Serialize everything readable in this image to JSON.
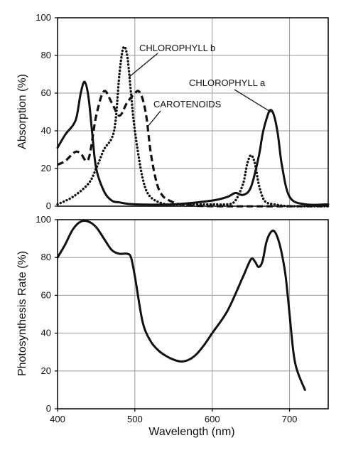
{
  "chart_data": [
    {
      "type": "line",
      "title": "",
      "xlabel": "",
      "ylabel": "Absorption (%)",
      "xlim": [
        400,
        750
      ],
      "ylim": [
        0,
        100
      ],
      "x_ticks": [
        400,
        500,
        600,
        700
      ],
      "y_ticks": [
        0,
        20,
        40,
        60,
        80,
        100
      ],
      "grid": true,
      "series": [
        {
          "name": "CHLOROPHYLL a",
          "style": "solid",
          "x": [
            400,
            410,
            420,
            425,
            430,
            435,
            440,
            445,
            450,
            460,
            470,
            480,
            500,
            550,
            600,
            620,
            630,
            640,
            650,
            660,
            665,
            670,
            675,
            680,
            685,
            690,
            700,
            720,
            750
          ],
          "y": [
            31,
            38,
            43,
            48,
            60,
            66,
            58,
            38,
            20,
            8,
            3,
            2,
            1,
            1,
            3,
            5,
            7,
            6,
            10,
            26,
            38,
            46,
            51,
            48,
            38,
            22,
            5,
            1,
            1
          ]
        },
        {
          "name": "CHLOROPHYLL b",
          "style": "dotted",
          "x": [
            400,
            420,
            440,
            450,
            460,
            470,
            475,
            480,
            485,
            490,
            495,
            500,
            510,
            520,
            540,
            560,
            600,
            620,
            630,
            640,
            645,
            650,
            655,
            660,
            665,
            670,
            680,
            700,
            750
          ],
          "y": [
            1,
            5,
            12,
            20,
            30,
            36,
            45,
            70,
            84,
            80,
            60,
            40,
            15,
            5,
            1,
            1,
            1,
            1,
            3,
            12,
            22,
            27,
            23,
            12,
            5,
            2,
            1,
            0,
            0
          ]
        },
        {
          "name": "CAROTENOIDS",
          "style": "dashed",
          "x": [
            400,
            410,
            420,
            425,
            430,
            440,
            450,
            460,
            470,
            480,
            490,
            500,
            505,
            510,
            515,
            520,
            525,
            530,
            535,
            540,
            550,
            560,
            600,
            750
          ],
          "y": [
            22,
            24,
            28,
            29,
            28,
            25,
            48,
            61,
            55,
            48,
            55,
            60,
            61,
            57,
            47,
            30,
            18,
            10,
            6,
            4,
            2,
            1,
            0,
            0
          ]
        }
      ],
      "annotations": [
        {
          "text": "CHLOROPHYLL b"
        },
        {
          "text": "CHLOROPHYLL a"
        },
        {
          "text": "CAROTENOIDS"
        }
      ]
    },
    {
      "type": "line",
      "title": "",
      "xlabel": "Wavelength (nm)",
      "ylabel": "Photosynthesis Rate (%)",
      "xlim": [
        400,
        750
      ],
      "ylim": [
        0,
        100
      ],
      "x_ticks": [
        400,
        500,
        600,
        700
      ],
      "y_ticks": [
        0,
        20,
        40,
        60,
        80,
        100
      ],
      "grid": true,
      "series": [
        {
          "name": "",
          "style": "solid",
          "x": [
            400,
            410,
            420,
            430,
            440,
            450,
            460,
            470,
            480,
            490,
            495,
            500,
            510,
            520,
            530,
            540,
            550,
            560,
            570,
            580,
            590,
            600,
            620,
            640,
            650,
            655,
            660,
            665,
            670,
            675,
            680,
            685,
            690,
            695,
            700,
            705,
            710,
            720
          ],
          "y": [
            80,
            87,
            95,
            99,
            99,
            96,
            90,
            84,
            82,
            82,
            80,
            70,
            46,
            36,
            31,
            28,
            26,
            25,
            26,
            29,
            34,
            40,
            52,
            70,
            79,
            78,
            75,
            78,
            88,
            93,
            94,
            90,
            82,
            70,
            50,
            30,
            20,
            10
          ]
        }
      ]
    }
  ]
}
